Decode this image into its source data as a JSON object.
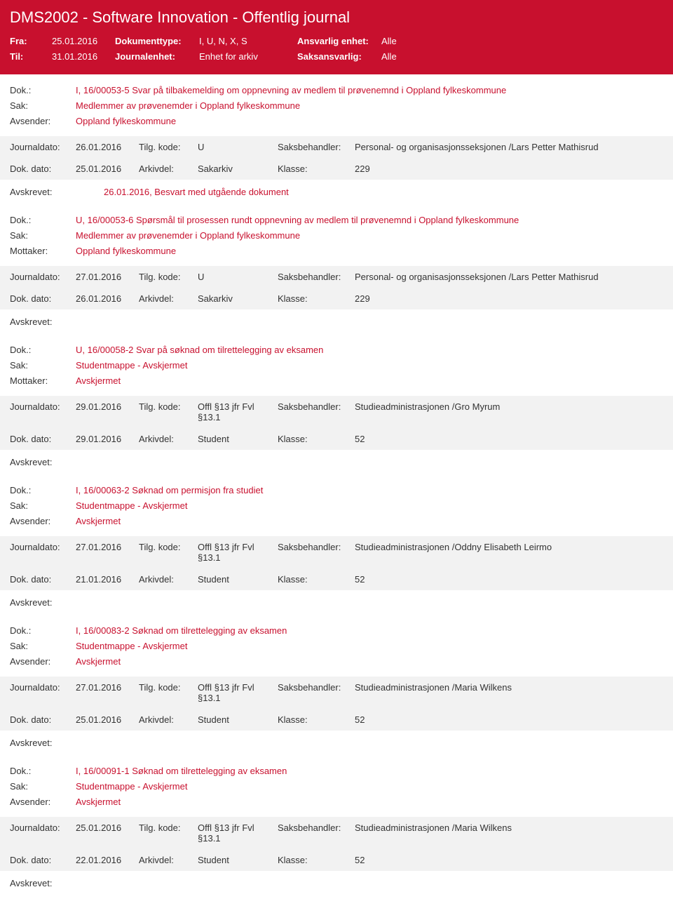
{
  "header": {
    "title": "DMS2002 - Software Innovation - Offentlig journal",
    "fra_label": "Fra:",
    "fra_value": "25.01.2016",
    "til_label": "Til:",
    "til_value": "31.01.2016",
    "dokumenttype_label": "Dokumenttype:",
    "dokumenttype_value": "I, U, N, X, S",
    "journalenhet_label": "Journalenhet:",
    "journalenhet_value": "Enhet for arkiv",
    "ansvarlig_label": "Ansvarlig enhet:",
    "ansvarlig_value": "Alle",
    "saksansvarlig_label": "Saksansvarlig:",
    "saksansvarlig_value": "Alle"
  },
  "labels": {
    "dok": "Dok.:",
    "sak": "Sak:",
    "avsender": "Avsender:",
    "mottaker": "Mottaker:",
    "journaldato": "Journaldato:",
    "tilgkode": "Tilg. kode:",
    "saksbehandler": "Saksbehandler:",
    "dokdato": "Dok. dato:",
    "arkivdel": "Arkivdel:",
    "klasse": "Klasse:",
    "avskrevet": "Avskrevet:"
  },
  "entries": [
    {
      "dok": "I, 16/00053-5 Svar på tilbakemelding om oppnevning av medlem til prøvenemnd i Oppland fylkeskommune",
      "sak": "Medlemmer av prøvenemder i Oppland fylkeskommune",
      "party_label": "Avsender:",
      "party": "Oppland fylkeskommune",
      "journaldato": "26.01.2016",
      "tilgkode": "U",
      "saksbehandler": "Personal- og organisasjonsseksjonen /Lars Petter Mathisrud",
      "dokdato": "25.01.2016",
      "arkivdel": "Sakarkiv",
      "klasse": "229",
      "avskrevet": "26.01.2016, Besvart med utgående dokument"
    },
    {
      "dok": "U, 16/00053-6 Spørsmål til prosessen rundt oppnevning av medlem til prøvenemnd i Oppland fylkeskommune",
      "sak": "Medlemmer av prøvenemder i Oppland fylkeskommune",
      "party_label": "Mottaker:",
      "party": "Oppland fylkeskommune",
      "journaldato": "27.01.2016",
      "tilgkode": "U",
      "saksbehandler": "Personal- og organisasjonsseksjonen /Lars Petter Mathisrud",
      "dokdato": "26.01.2016",
      "arkivdel": "Sakarkiv",
      "klasse": "229",
      "avskrevet": ""
    },
    {
      "dok": "U, 16/00058-2 Svar på søknad om tilrettelegging av eksamen",
      "sak": "Studentmappe - Avskjermet",
      "party_label": "Mottaker:",
      "party": "Avskjermet",
      "journaldato": "29.01.2016",
      "tilgkode": "Offl §13 jfr Fvl §13.1",
      "saksbehandler": "Studieadministrasjonen /Gro Myrum",
      "dokdato": "29.01.2016",
      "arkivdel": "Student",
      "klasse": "52",
      "avskrevet": ""
    },
    {
      "dok": "I, 16/00063-2 Søknad om permisjon fra studiet",
      "sak": "Studentmappe - Avskjermet",
      "party_label": "Avsender:",
      "party": "Avskjermet",
      "journaldato": "27.01.2016",
      "tilgkode": "Offl §13 jfr Fvl §13.1",
      "saksbehandler": "Studieadministrasjonen /Oddny Elisabeth Leirmo",
      "dokdato": "21.01.2016",
      "arkivdel": "Student",
      "klasse": "52",
      "avskrevet": ""
    },
    {
      "dok": "I, 16/00083-2 Søknad om tilrettelegging av eksamen",
      "sak": "Studentmappe - Avskjermet",
      "party_label": "Avsender:",
      "party": "Avskjermet",
      "journaldato": "27.01.2016",
      "tilgkode": "Offl §13 jfr Fvl §13.1",
      "saksbehandler": "Studieadministrasjonen /Maria Wilkens",
      "dokdato": "25.01.2016",
      "arkivdel": "Student",
      "klasse": "52",
      "avskrevet": ""
    },
    {
      "dok": "I, 16/00091-1 Søknad om tilrettelegging av eksamen",
      "sak": "Studentmappe - Avskjermet",
      "party_label": "Avsender:",
      "party": "Avskjermet",
      "journaldato": "25.01.2016",
      "tilgkode": "Offl §13 jfr Fvl §13.1",
      "saksbehandler": "Studieadministrasjonen /Maria Wilkens",
      "dokdato": "22.01.2016",
      "arkivdel": "Student",
      "klasse": "52",
      "avskrevet": ""
    }
  ]
}
